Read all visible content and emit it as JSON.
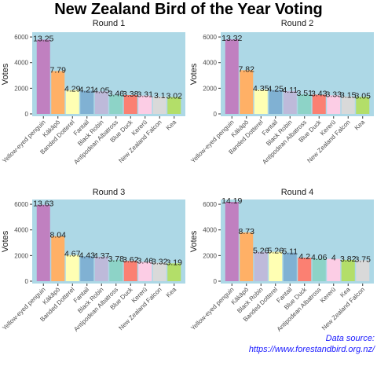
{
  "title": "New Zealand Bird of the Year Voting",
  "source": {
    "line1": "Data source:",
    "line2": "https://www.forestandbird.org.nz/"
  },
  "colors": {
    "panel_bg": "#add8e6",
    "text": "#1a1a1a",
    "tick": "#4d4d4d",
    "source": "#1a1aff"
  },
  "chart_data": [
    {
      "type": "bar",
      "title": "Round 1",
      "ylabel": "Votes",
      "ylim": [
        0,
        6500
      ],
      "yticks": [
        0,
        2000,
        4000,
        6000
      ],
      "categories": [
        "Yellow-eyed penguin",
        "Kākāpō",
        "Banded Dotterel",
        "Fantail",
        "Black Robin",
        "Antipodean Albatross",
        "Blue Duck",
        "Kererū",
        "New Zealand Falcon",
        "Kea"
      ],
      "values": [
        5790,
        3340,
        1860,
        1820,
        1760,
        1500,
        1470,
        1430,
        1350,
        1310
      ],
      "labels": [
        "13.25",
        "7.79",
        "4.29",
        "4.21",
        "4.05",
        "3.46",
        "3.38",
        "3.31",
        "3.1",
        "3.02"
      ],
      "colors": [
        "#c080c0",
        "#ffb066",
        "#ffffb3",
        "#80b1d3",
        "#bebada",
        "#8dd3c7",
        "#fb8072",
        "#fccde5",
        "#d9d9d9",
        "#b3de69"
      ]
    },
    {
      "type": "bar",
      "title": "Round 2",
      "ylabel": "Votes",
      "ylim": [
        0,
        6500
      ],
      "yticks": [
        0,
        2000,
        4000,
        6000
      ],
      "categories": [
        "Yellow-eyed penguin",
        "Kākāpō",
        "Banded Dotterel",
        "Fantail",
        "Black Robin",
        "Antipodean Albatross",
        "Blue Duck",
        "Kererū",
        "New Zealand Falcon",
        "Kea"
      ],
      "values": [
        5810,
        3410,
        1900,
        1860,
        1790,
        1530,
        1500,
        1450,
        1370,
        1330
      ],
      "labels": [
        "13.32",
        "7.82",
        "4.35",
        "4.25",
        "4.11",
        "3.51",
        "3.43",
        "3.33",
        "3.15",
        "3.05"
      ],
      "colors": [
        "#c080c0",
        "#ffb066",
        "#ffffb3",
        "#80b1d3",
        "#bebada",
        "#8dd3c7",
        "#fb8072",
        "#fccde5",
        "#d9d9d9",
        "#b3de69"
      ]
    },
    {
      "type": "bar",
      "title": "Round 3",
      "ylabel": "Votes",
      "ylim": [
        0,
        6500
      ],
      "yticks": [
        0,
        2000,
        4000,
        6000
      ],
      "categories": [
        "Yellow-eyed penguin",
        "Kākāpō",
        "Banded Dotterel",
        "Fantail",
        "Black Robin",
        "Antipodean Albatross",
        "Blue Duck",
        "Kererū",
        "New Zealand Falcon",
        "Kea"
      ],
      "values": [
        5960,
        3510,
        2040,
        1940,
        1910,
        1650,
        1580,
        1510,
        1450,
        1390
      ],
      "labels": [
        "13.63",
        "8.04",
        "4.67",
        "4.43",
        "4.37",
        "3.78",
        "3.62",
        "3.46",
        "3.32",
        "3.19"
      ],
      "colors": [
        "#c080c0",
        "#ffb066",
        "#ffffb3",
        "#80b1d3",
        "#bebada",
        "#8dd3c7",
        "#fb8072",
        "#fccde5",
        "#d9d9d9",
        "#b3de69"
      ]
    },
    {
      "type": "bar",
      "title": "Round 4",
      "ylabel": "Votes",
      "ylim": [
        0,
        6500
      ],
      "yticks": [
        0,
        2000,
        4000,
        6000
      ],
      "categories": [
        "Yellow-eyed penguin",
        "Kākāpō",
        "Black Robin",
        "Banded Dotterel",
        "Fantail",
        "Blue Duck",
        "Antipodean Albatross",
        "Kererū",
        "Kea",
        "New Zealand Falcon"
      ],
      "values": [
        6180,
        3800,
        2290,
        2290,
        2230,
        1830,
        1770,
        1740,
        1660,
        1630
      ],
      "labels": [
        "14.19",
        "8.73",
        "5.26",
        "5.26",
        "5.11",
        "4.2",
        "4.06",
        "4",
        "3.82",
        "3.75"
      ],
      "colors": [
        "#c080c0",
        "#ffb066",
        "#bebada",
        "#ffffb3",
        "#80b1d3",
        "#fb8072",
        "#8dd3c7",
        "#fccde5",
        "#b3de69",
        "#d9d9d9"
      ]
    }
  ]
}
